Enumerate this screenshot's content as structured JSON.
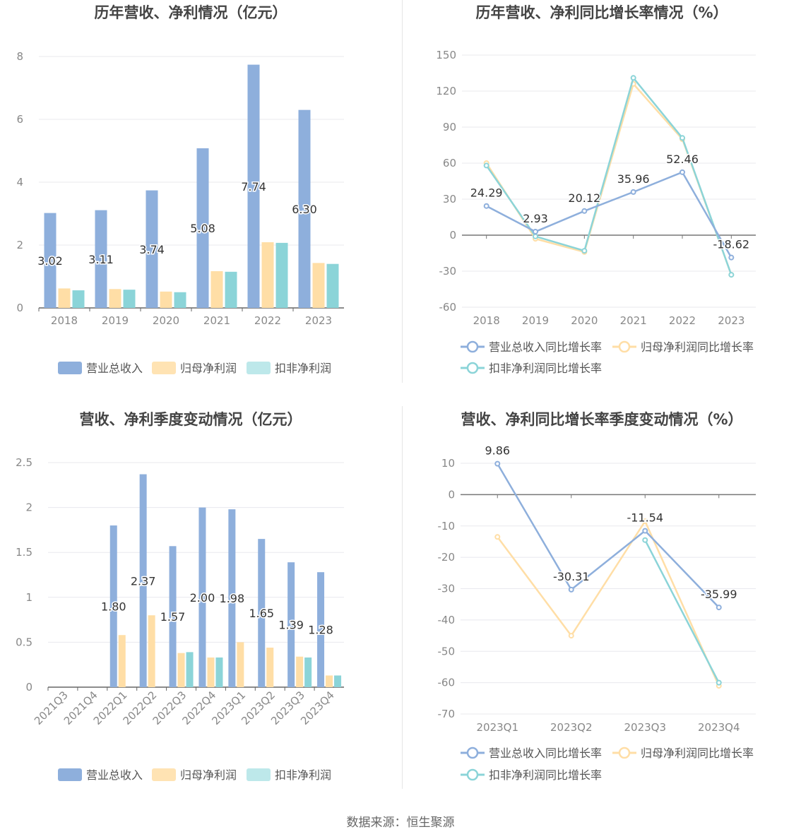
{
  "colors": {
    "revenue": "#8eafdc",
    "net": "#ffdea6",
    "deducted": "#8bd4d8",
    "grid": "#e8e8ee",
    "axis": "#888",
    "title": "#444"
  },
  "source": "数据来源：恒生聚源",
  "chart_data": [
    {
      "type": "bar",
      "title": "历年营收、净利情况（亿元）",
      "categories": [
        "2018",
        "2019",
        "2020",
        "2021",
        "2022",
        "2023"
      ],
      "ylim": [
        0,
        8
      ],
      "yticks": [
        0,
        2,
        4,
        6,
        8
      ],
      "series": [
        {
          "name": "营业总收入",
          "values": [
            3.02,
            3.11,
            3.74,
            5.08,
            7.74,
            6.3
          ],
          "labels": [
            "3.02",
            "3.11",
            "3.74",
            "5.08",
            "7.74",
            "6.30"
          ]
        },
        {
          "name": "归母净利润",
          "values": [
            0.62,
            0.6,
            0.52,
            1.17,
            2.09,
            1.43
          ]
        },
        {
          "name": "扣非净利润",
          "values": [
            0.56,
            0.58,
            0.5,
            1.15,
            2.07,
            1.4
          ]
        }
      ]
    },
    {
      "type": "line",
      "title": "历年营收、净利同比增长率情况（%）",
      "categories": [
        "2018",
        "2019",
        "2020",
        "2021",
        "2022",
        "2023"
      ],
      "ylim": [
        -60,
        150
      ],
      "yticks": [
        -60,
        -30,
        0,
        30,
        60,
        90,
        120,
        150
      ],
      "series": [
        {
          "name": "营业总收入同比增长率",
          "values": [
            24.29,
            2.93,
            20.12,
            35.96,
            52.46,
            -18.62
          ],
          "labels": [
            "24.29",
            "2.93",
            "20.12",
            "35.96",
            "52.46",
            "-18.62"
          ]
        },
        {
          "name": "归母净利润同比增长率",
          "values": [
            60,
            -3,
            -14,
            126,
            80,
            -33
          ]
        },
        {
          "name": "扣非净利润同比增长率",
          "values": [
            58,
            -1,
            -13,
            131,
            81,
            -33
          ]
        }
      ]
    },
    {
      "type": "bar",
      "title": "营收、净利季度变动情况（亿元）",
      "categories": [
        "2021Q3",
        "2021Q4",
        "2022Q1",
        "2022Q2",
        "2022Q3",
        "2022Q4",
        "2023Q1",
        "2023Q2",
        "2023Q3",
        "2023Q4"
      ],
      "ylim": [
        0,
        2.5
      ],
      "yticks": [
        0,
        0.5,
        1,
        1.5,
        2,
        2.5
      ],
      "yticklabels": [
        "0",
        "0.5",
        "1",
        "1.5",
        "2",
        "2.5"
      ],
      "series": [
        {
          "name": "营业总收入",
          "values": [
            null,
            null,
            1.8,
            2.37,
            1.57,
            2.0,
            1.98,
            1.65,
            1.39,
            1.28
          ],
          "labels": [
            "",
            "",
            "1.80",
            "2.37",
            "1.57",
            "2.00",
            "1.98",
            "1.65",
            "1.39",
            "1.28"
          ]
        },
        {
          "name": "归母净利润",
          "values": [
            null,
            null,
            0.58,
            0.8,
            0.38,
            0.33,
            0.5,
            0.44,
            0.34,
            0.13
          ]
        },
        {
          "name": "扣非净利润",
          "values": [
            null,
            null,
            null,
            null,
            0.39,
            0.33,
            null,
            null,
            0.33,
            0.13
          ]
        }
      ]
    },
    {
      "type": "line",
      "title": "营收、净利同比增长率季度变动情况（%）",
      "categories": [
        "2023Q1",
        "2023Q2",
        "2023Q3",
        "2023Q4"
      ],
      "ylim": [
        -70,
        10
      ],
      "yticks": [
        -70,
        -60,
        -50,
        -40,
        -30,
        -20,
        -10,
        0,
        10
      ],
      "series": [
        {
          "name": "营业总收入同比增长率",
          "values": [
            9.86,
            -30.31,
            -11.54,
            -35.99
          ],
          "labels": [
            "9.86",
            "-30.31",
            "-11.54",
            "-35.99"
          ]
        },
        {
          "name": "归母净利润同比增长率",
          "values": [
            -13.5,
            -45,
            -8.5,
            -61
          ]
        },
        {
          "name": "扣非净利润同比增长率",
          "values": [
            null,
            null,
            -14.5,
            -60
          ]
        }
      ]
    }
  ]
}
